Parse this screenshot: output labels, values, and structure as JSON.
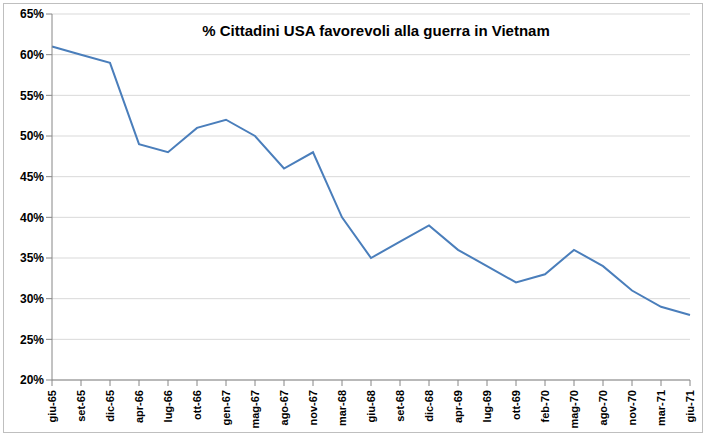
{
  "chart_data": {
    "type": "line",
    "title": "% Cittadini USA favorevoli alla guerra in Vietnam",
    "categories": [
      "giu-65",
      "set-65",
      "dic-65",
      "apr-66",
      "lug-66",
      "ott-66",
      "gen-67",
      "mag-67",
      "ago-67",
      "nov-67",
      "mar-68",
      "giu-68",
      "set-68",
      "dic-68",
      "apr-69",
      "lug-69",
      "ott-69",
      "feb-70",
      "mag-70",
      "ago-70",
      "nov-70",
      "mar-71",
      "giu-71"
    ],
    "values": [
      61,
      60,
      59,
      49,
      48,
      51,
      52,
      50,
      46,
      48,
      40,
      35,
      37,
      39,
      36,
      34,
      32,
      33,
      36,
      34,
      31,
      29,
      28
    ],
    "color": "#4a7ebb",
    "marker": "none",
    "ylim": [
      20,
      65
    ],
    "yticks": [
      {
        "value": 20,
        "label": "20%"
      },
      {
        "value": 25,
        "label": "25%"
      },
      {
        "value": 30,
        "label": "30%"
      },
      {
        "value": 35,
        "label": "35%"
      },
      {
        "value": 40,
        "label": "40%"
      },
      {
        "value": 45,
        "label": "45%"
      },
      {
        "value": 50,
        "label": "50%"
      },
      {
        "value": 55,
        "label": "55%"
      },
      {
        "value": 60,
        "label": "60%"
      },
      {
        "value": 65,
        "label": "65%"
      }
    ],
    "grid": true
  }
}
